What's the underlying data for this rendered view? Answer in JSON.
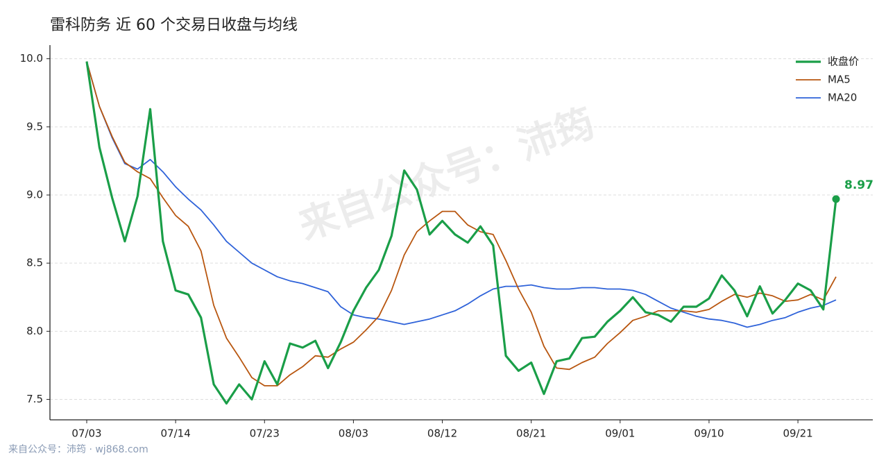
{
  "chart_data": {
    "type": "line",
    "title": "雷科防务 近 60 个交易日收盘与均线",
    "watermark": "来自公众号：沛筠",
    "footer": "来自公众号：沛筠 · wj868.com",
    "categories": [
      "07/03",
      null,
      null,
      null,
      null,
      null,
      null,
      "07/14",
      null,
      null,
      null,
      null,
      null,
      null,
      "07/23",
      null,
      null,
      null,
      null,
      null,
      null,
      "08/03",
      null,
      null,
      null,
      null,
      null,
      null,
      "08/12",
      null,
      null,
      null,
      null,
      null,
      null,
      "08/21",
      null,
      null,
      null,
      null,
      null,
      null,
      "09/01",
      null,
      null,
      null,
      null,
      null,
      null,
      "09/10",
      null,
      null,
      null,
      null,
      null,
      null,
      "09/21",
      null,
      null,
      null
    ],
    "series": [
      {
        "name": "收盘价",
        "color": "#1a9e48",
        "values": [
          9.98,
          9.35,
          8.98,
          8.66,
          8.99,
          9.63,
          8.66,
          8.3,
          8.27,
          8.1,
          7.61,
          7.47,
          7.61,
          7.5,
          7.78,
          7.61,
          7.91,
          7.88,
          7.93,
          7.73,
          7.92,
          8.15,
          8.32,
          8.45,
          8.7,
          9.18,
          9.04,
          8.71,
          8.81,
          8.71,
          8.65,
          8.77,
          8.63,
          7.82,
          7.71,
          7.77,
          7.54,
          7.78,
          7.8,
          7.95,
          7.96,
          8.07,
          8.15,
          8.25,
          8.14,
          8.12,
          8.07,
          8.18,
          8.18,
          8.24,
          8.41,
          8.3,
          8.11,
          8.33,
          8.13,
          8.23,
          8.35,
          8.3,
          8.16,
          8.97
        ]
      },
      {
        "name": "MA5",
        "color": "#b8560f",
        "values": [
          9.98,
          9.65,
          9.43,
          9.24,
          9.17,
          9.12,
          8.98,
          8.85,
          8.77,
          8.59,
          8.19,
          7.95,
          7.81,
          7.66,
          7.6,
          7.6,
          7.68,
          7.74,
          7.82,
          7.81,
          7.87,
          7.92,
          8.01,
          8.11,
          8.3,
          8.56,
          8.73,
          8.81,
          8.88,
          8.88,
          8.78,
          8.73,
          8.71,
          8.52,
          8.31,
          8.14,
          7.89,
          7.73,
          7.72,
          7.77,
          7.81,
          7.91,
          7.99,
          8.08,
          8.11,
          8.15,
          8.15,
          8.15,
          8.14,
          8.16,
          8.22,
          8.27,
          8.25,
          8.28,
          8.26,
          8.22,
          8.23,
          8.27,
          8.23,
          8.4
        ]
      },
      {
        "name": "MA20",
        "color": "#2e62d9",
        "values": [
          9.98,
          9.65,
          9.42,
          9.23,
          9.19,
          9.26,
          9.17,
          9.06,
          8.97,
          8.89,
          8.78,
          8.66,
          8.58,
          8.5,
          8.45,
          8.4,
          8.37,
          8.35,
          8.32,
          8.29,
          8.18,
          8.12,
          8.1,
          8.09,
          8.07,
          8.05,
          8.07,
          8.09,
          8.12,
          8.15,
          8.2,
          8.26,
          8.31,
          8.33,
          8.33,
          8.34,
          8.32,
          8.31,
          8.31,
          8.32,
          8.32,
          8.31,
          8.31,
          8.3,
          8.27,
          8.22,
          8.17,
          8.14,
          8.11,
          8.09,
          8.08,
          8.06,
          8.03,
          8.05,
          8.08,
          8.1,
          8.14,
          8.17,
          8.19,
          8.23
        ]
      }
    ],
    "ylim": [
      7.35,
      10.1
    ],
    "yticks": [
      {
        "value": 7.5,
        "label": "7.5"
      },
      {
        "value": 8,
        "label": "8.0"
      },
      {
        "value": 8.5,
        "label": "8.5"
      },
      {
        "value": 9,
        "label": "9.0"
      },
      {
        "value": 9.5,
        "label": "9.5"
      },
      {
        "value": 10,
        "label": "10.0"
      }
    ],
    "grid": true,
    "legend": "upper right"
  }
}
